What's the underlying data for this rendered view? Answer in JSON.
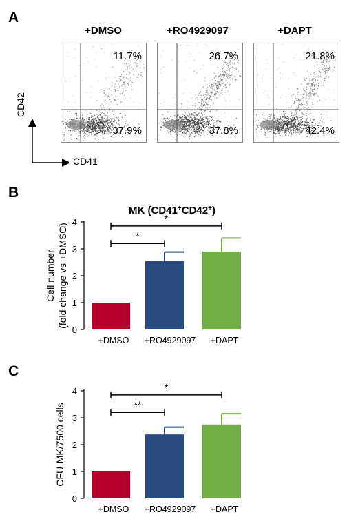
{
  "panel_a": {
    "letter": "A",
    "y_marker": "CD42",
    "x_marker": "CD41",
    "plots": [
      {
        "condition": "+DMSO",
        "upper_pct": "11.7%",
        "lower_pct": "37.9%"
      },
      {
        "condition": "+RO4929097",
        "upper_pct": "26.7%",
        "lower_pct": "37.8%"
      },
      {
        "condition": "+DAPT",
        "upper_pct": "21.8%",
        "lower_pct": "42.4%"
      }
    ]
  },
  "panel_b": {
    "letter": "B"
  },
  "panel_c": {
    "letter": "C"
  },
  "colors": {
    "dmso": "#b5002a",
    "ro": "#2a4a7f",
    "dapt": "#72ad46"
  },
  "chart_data": [
    {
      "type": "bar",
      "title": "MK (CD41+CD42+)",
      "categories": [
        "+DMSO",
        "+RO4929097",
        "+DAPT"
      ],
      "values": [
        1.0,
        2.55,
        2.9
      ],
      "errors": [
        0,
        0.33,
        0.5
      ],
      "ylabel_line1": "Cell number",
      "ylabel_line2": "(fold change vs +DMSO)",
      "ylim": [
        0,
        4
      ],
      "yticks": [
        "0",
        "1",
        "2",
        "3",
        "4"
      ],
      "significance": [
        {
          "from": 0,
          "to": 1,
          "label": "*",
          "y": 3.2
        },
        {
          "from": 0,
          "to": 2,
          "label": "*",
          "y": 3.85
        }
      ]
    },
    {
      "type": "bar",
      "title": "",
      "categories": [
        "+DMSO",
        "+RO4929097",
        "+DAPT"
      ],
      "values": [
        1.0,
        2.38,
        2.75
      ],
      "errors": [
        0,
        0.27,
        0.4
      ],
      "ylabel_line1": "CFU-MK/7500 cells",
      "ylabel_line2": "",
      "ylim": [
        0,
        4
      ],
      "yticks": [
        "0",
        "1",
        "2",
        "3",
        "4"
      ],
      "significance": [
        {
          "from": 0,
          "to": 1,
          "label": "**",
          "y": 3.2
        },
        {
          "from": 0,
          "to": 2,
          "label": "*",
          "y": 3.85
        }
      ]
    }
  ]
}
